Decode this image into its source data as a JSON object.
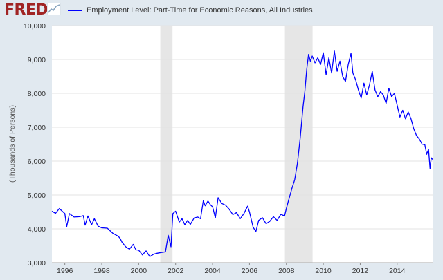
{
  "header": {
    "logo_text": "FRED",
    "legend_label": "Employment Level: Part-Time for Economic Reasons, All Industries",
    "series_color": "#0000ff"
  },
  "chart_data": {
    "type": "line",
    "title": "Employment Level: Part-Time for Economic Reasons, All Industries",
    "xlabel": "",
    "ylabel": "(Thousands of Persons)",
    "xlim": [
      1995.3,
      2015.92
    ],
    "ylim": [
      3000,
      10000
    ],
    "yticks": [
      3000,
      4000,
      5000,
      6000,
      7000,
      8000,
      9000,
      10000
    ],
    "ytick_labels": [
      "3,000",
      "4,000",
      "5,000",
      "6,000",
      "7,000",
      "8,000",
      "9,000",
      "10,000"
    ],
    "xticks": [
      1996,
      1998,
      2000,
      2002,
      2004,
      2006,
      2008,
      2010,
      2012,
      2014
    ],
    "xtick_labels": [
      "1996",
      "1998",
      "2000",
      "2002",
      "2004",
      "2006",
      "2008",
      "2010",
      "2012",
      "2014"
    ],
    "grid": "horizontal",
    "recessions": [
      {
        "start": 2001.17,
        "end": 2001.83
      },
      {
        "start": 2007.92,
        "end": 2009.42
      }
    ],
    "series": [
      {
        "name": "Employment Level: Part-Time for Economic Reasons, All Industries",
        "color": "#0000ff",
        "points": [
          [
            1995.3,
            4520
          ],
          [
            1995.5,
            4460
          ],
          [
            1995.7,
            4600
          ],
          [
            1995.9,
            4500
          ],
          [
            1996.0,
            4450
          ],
          [
            1996.1,
            4060
          ],
          [
            1996.25,
            4450
          ],
          [
            1996.5,
            4350
          ],
          [
            1996.8,
            4360
          ],
          [
            1997.0,
            4390
          ],
          [
            1997.1,
            4110
          ],
          [
            1997.25,
            4380
          ],
          [
            1997.45,
            4120
          ],
          [
            1997.6,
            4300
          ],
          [
            1997.8,
            4080
          ],
          [
            1998.0,
            4030
          ],
          [
            1998.3,
            4020
          ],
          [
            1998.6,
            3870
          ],
          [
            1998.9,
            3780
          ],
          [
            1999.0,
            3710
          ],
          [
            1999.1,
            3600
          ],
          [
            1999.3,
            3470
          ],
          [
            1999.5,
            3400
          ],
          [
            1999.7,
            3540
          ],
          [
            1999.85,
            3380
          ],
          [
            2000.0,
            3370
          ],
          [
            2000.2,
            3230
          ],
          [
            2000.4,
            3350
          ],
          [
            2000.6,
            3180
          ],
          [
            2000.8,
            3250
          ],
          [
            2001.0,
            3280
          ],
          [
            2001.2,
            3300
          ],
          [
            2001.45,
            3320
          ],
          [
            2001.6,
            3810
          ],
          [
            2001.75,
            3470
          ],
          [
            2001.85,
            4450
          ],
          [
            2002.0,
            4520
          ],
          [
            2002.2,
            4200
          ],
          [
            2002.35,
            4300
          ],
          [
            2002.5,
            4120
          ],
          [
            2002.65,
            4250
          ],
          [
            2002.8,
            4130
          ],
          [
            2003.0,
            4320
          ],
          [
            2003.2,
            4350
          ],
          [
            2003.35,
            4300
          ],
          [
            2003.5,
            4830
          ],
          [
            2003.6,
            4680
          ],
          [
            2003.75,
            4820
          ],
          [
            2003.9,
            4700
          ],
          [
            2004.0,
            4650
          ],
          [
            2004.15,
            4320
          ],
          [
            2004.3,
            4920
          ],
          [
            2004.5,
            4750
          ],
          [
            2004.7,
            4700
          ],
          [
            2004.9,
            4580
          ],
          [
            2005.1,
            4420
          ],
          [
            2005.3,
            4480
          ],
          [
            2005.5,
            4300
          ],
          [
            2005.7,
            4450
          ],
          [
            2005.9,
            4670
          ],
          [
            2006.0,
            4500
          ],
          [
            2006.2,
            4050
          ],
          [
            2006.35,
            3920
          ],
          [
            2006.5,
            4250
          ],
          [
            2006.7,
            4330
          ],
          [
            2006.9,
            4150
          ],
          [
            2007.1,
            4220
          ],
          [
            2007.3,
            4360
          ],
          [
            2007.5,
            4250
          ],
          [
            2007.7,
            4430
          ],
          [
            2007.9,
            4380
          ],
          [
            2008.0,
            4600
          ],
          [
            2008.15,
            4900
          ],
          [
            2008.3,
            5200
          ],
          [
            2008.45,
            5450
          ],
          [
            2008.6,
            5950
          ],
          [
            2008.75,
            6700
          ],
          [
            2008.9,
            7600
          ],
          [
            2009.0,
            8050
          ],
          [
            2009.1,
            8700
          ],
          [
            2009.2,
            9150
          ],
          [
            2009.3,
            8950
          ],
          [
            2009.4,
            9100
          ],
          [
            2009.55,
            8900
          ],
          [
            2009.7,
            9050
          ],
          [
            2009.85,
            8850
          ],
          [
            2010.0,
            9200
          ],
          [
            2010.15,
            8550
          ],
          [
            2010.3,
            9050
          ],
          [
            2010.45,
            8600
          ],
          [
            2010.6,
            9250
          ],
          [
            2010.75,
            8650
          ],
          [
            2010.9,
            8950
          ],
          [
            2011.05,
            8500
          ],
          [
            2011.2,
            8350
          ],
          [
            2011.35,
            8850
          ],
          [
            2011.5,
            9180
          ],
          [
            2011.6,
            8600
          ],
          [
            2011.75,
            8400
          ],
          [
            2011.9,
            8100
          ],
          [
            2012.05,
            7860
          ],
          [
            2012.2,
            8300
          ],
          [
            2012.35,
            7950
          ],
          [
            2012.5,
            8250
          ],
          [
            2012.65,
            8650
          ],
          [
            2012.8,
            8100
          ],
          [
            2012.95,
            7900
          ],
          [
            2013.1,
            8050
          ],
          [
            2013.25,
            7950
          ],
          [
            2013.4,
            7700
          ],
          [
            2013.55,
            8150
          ],
          [
            2013.7,
            7900
          ],
          [
            2013.85,
            8000
          ],
          [
            2014.0,
            7650
          ],
          [
            2014.15,
            7300
          ],
          [
            2014.3,
            7500
          ],
          [
            2014.45,
            7250
          ],
          [
            2014.6,
            7450
          ],
          [
            2014.75,
            7250
          ],
          [
            2014.9,
            6950
          ],
          [
            2015.05,
            6750
          ],
          [
            2015.2,
            6650
          ],
          [
            2015.35,
            6500
          ],
          [
            2015.5,
            6480
          ],
          [
            2015.6,
            6200
          ],
          [
            2015.7,
            6350
          ],
          [
            2015.78,
            5780
          ],
          [
            2015.85,
            6100
          ],
          [
            2015.92,
            6050
          ]
        ]
      }
    ]
  }
}
